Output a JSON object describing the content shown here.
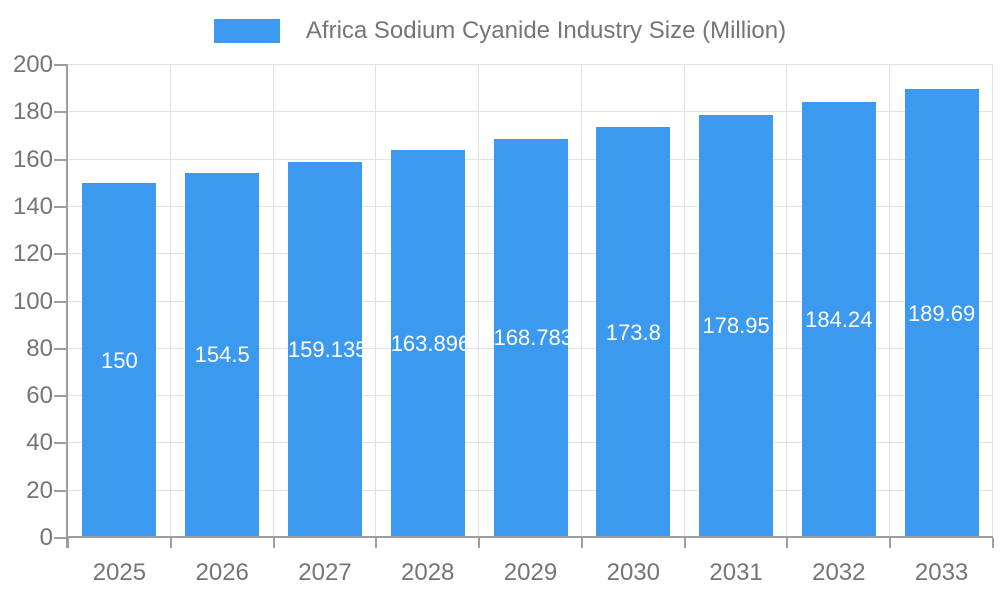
{
  "legend": {
    "title": "Africa Sodium Cyanide Industry Size (Million)"
  },
  "chart_data": {
    "type": "bar",
    "title": "Africa Sodium Cyanide Industry Size (Million)",
    "categories": [
      "2025",
      "2026",
      "2027",
      "2028",
      "2029",
      "2030",
      "2031",
      "2032",
      "2033"
    ],
    "values": [
      150,
      154.5,
      159.135,
      163.896,
      168.783,
      173.8,
      178.95,
      184.24,
      189.69
    ],
    "value_labels": [
      "150",
      "154.5",
      "159.135",
      "163.896",
      "168.783",
      "173.8",
      "178.95",
      "184.24",
      "189.69"
    ],
    "xlabel": "",
    "ylabel": "",
    "ylim": [
      0,
      200
    ],
    "y_tick_step": 20,
    "y_tick_labels": [
      "0",
      "20",
      "40",
      "60",
      "80",
      "100",
      "120",
      "140",
      "160",
      "180",
      "200"
    ],
    "grid": true,
    "legend_position": "top",
    "colors": {
      "bar": "#3B99F0",
      "bar_label": "#FFFFFF",
      "grid_line": "#E2E2E2",
      "axis_line": "#9E9E9E",
      "axis_text": "#757575",
      "legend_text": "#757575",
      "background": "#FFFFFF"
    }
  }
}
